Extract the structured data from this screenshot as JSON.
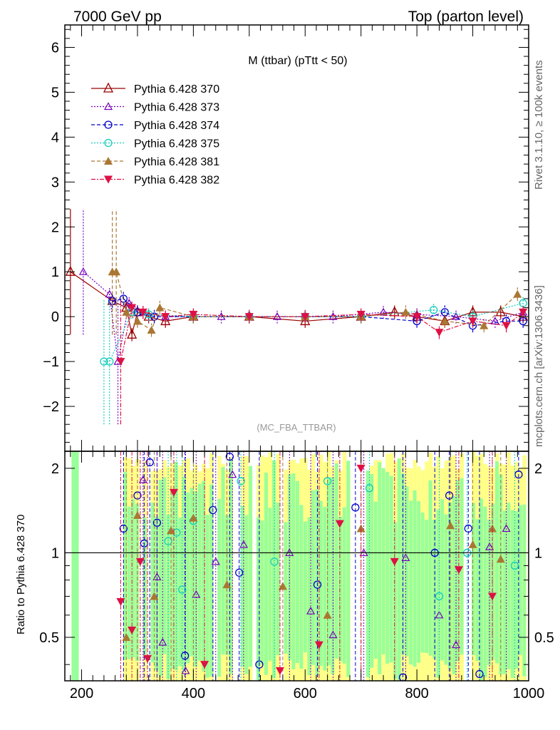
{
  "header": {
    "left": "7000 GeV pp",
    "right": "Top (parton level)"
  },
  "side": {
    "rivet": "Rivet 3.1.10, ≥ 100k events",
    "mcplots": "mcplots.cern.ch [arXiv:1306.3436]"
  },
  "plot_title": "M (ttbar) (pTtt < 50)",
  "analysis": "(MC_FBA_TTBAR)",
  "ratio_ylabel": "Ratio to Pythia 6.428 370",
  "colors": {
    "370": "#990000",
    "373": "#7700bb",
    "374": "#0000cc",
    "375": "#11ccbb",
    "381": "#aa7733",
    "382": "#dd1144",
    "band_green": "#99ff99",
    "band_yellow": "#ffff88"
  },
  "chart_data": {
    "type": "scatter",
    "main": {
      "xlim": [
        170,
        1000
      ],
      "ylim": [
        -3,
        6.5
      ],
      "yticks": [
        -2,
        -1,
        0,
        1,
        2,
        3,
        4,
        5,
        6
      ],
      "ytick_labels": [
        "−2",
        "−1",
        "0",
        "1",
        "2",
        "3",
        "4",
        "5",
        "6"
      ]
    },
    "ratio": {
      "ylim": [
        0.35,
        2.3
      ],
      "yticks": [
        0.5,
        1,
        2
      ],
      "ytick_labels": [
        "0.5",
        "1",
        "2"
      ]
    },
    "xticks": [
      200,
      400,
      600,
      800,
      1000
    ],
    "xtick_labels": [
      "200",
      "400",
      "600",
      "800",
      "1000"
    ],
    "legend": [
      {
        "name": "Pythia 6.428 370",
        "marker": "triangle-open",
        "dash": "solid"
      },
      {
        "name": "Pythia 6.428 373",
        "marker": "triangle-open-small",
        "dash": "dotted"
      },
      {
        "name": "Pythia 6.428 374",
        "marker": "circle-open",
        "dash": "dashed"
      },
      {
        "name": "Pythia 6.428 375",
        "marker": "circle-open",
        "dash": "dotted"
      },
      {
        "name": "Pythia 6.428 381",
        "marker": "triangle-filled",
        "dash": "dashed"
      },
      {
        "name": "Pythia 6.428 382",
        "marker": "triangle-down-filled",
        "dash": "dashdot"
      }
    ],
    "series": [
      {
        "name": "Pythia 6.428 370",
        "points": [
          [
            180,
            1.0
          ],
          [
            255,
            0.35
          ],
          [
            280,
            0.2
          ],
          [
            290,
            -0.4
          ],
          [
            300,
            0.1
          ],
          [
            320,
            0.0
          ],
          [
            350,
            -0.1
          ],
          [
            400,
            0.0
          ],
          [
            500,
            0.0
          ],
          [
            600,
            -0.1
          ],
          [
            700,
            0.0
          ],
          [
            760,
            0.1
          ],
          [
            800,
            0.0
          ],
          [
            850,
            -0.1
          ],
          [
            900,
            0.1
          ],
          [
            950,
            0.1
          ],
          [
            990,
            0.0
          ]
        ]
      },
      {
        "name": "Pythia 6.428 373",
        "points": [
          [
            203,
            1.0
          ],
          [
            250,
            0.5
          ],
          [
            265,
            -1.0
          ],
          [
            285,
            0.3
          ],
          [
            310,
            0.1
          ],
          [
            350,
            0.0
          ],
          [
            450,
            0.0
          ],
          [
            550,
            0.0
          ],
          [
            650,
            0.0
          ],
          [
            740,
            0.1
          ],
          [
            800,
            0.05
          ],
          [
            870,
            0.0
          ],
          [
            940,
            -0.1
          ],
          [
            990,
            0.1
          ]
        ]
      },
      {
        "name": "Pythia 6.428 374",
        "points": [
          [
            255,
            0.35
          ],
          [
            275,
            0.4
          ],
          [
            300,
            0.1
          ],
          [
            330,
            0.0
          ],
          [
            400,
            0.0
          ],
          [
            500,
            0.0
          ],
          [
            600,
            0.0
          ],
          [
            700,
            0.0
          ],
          [
            800,
            -0.1
          ],
          [
            850,
            0.1
          ],
          [
            900,
            -0.2
          ],
          [
            960,
            -0.1
          ],
          [
            990,
            -0.1
          ]
        ]
      },
      {
        "name": "Pythia 6.428 375",
        "points": [
          [
            240,
            -1.0
          ],
          [
            250,
            -1.0
          ],
          [
            290,
            0.1
          ],
          [
            320,
            0.05
          ],
          [
            400,
            0.0
          ],
          [
            500,
            0.0
          ],
          [
            600,
            0.0
          ],
          [
            700,
            0.0
          ],
          [
            830,
            0.15
          ],
          [
            900,
            0.0
          ],
          [
            990,
            0.3
          ]
        ]
      },
      {
        "name": "Pythia 6.428 381",
        "points": [
          [
            255,
            1.0
          ],
          [
            262,
            1.0
          ],
          [
            280,
            0.1
          ],
          [
            300,
            -0.1
          ],
          [
            325,
            -0.3
          ],
          [
            340,
            0.2
          ],
          [
            400,
            0.0
          ],
          [
            500,
            0.0
          ],
          [
            600,
            0.0
          ],
          [
            700,
            0.0
          ],
          [
            780,
            0.1
          ],
          [
            850,
            -0.1
          ],
          [
            920,
            -0.2
          ],
          [
            980,
            0.5
          ]
        ]
      },
      {
        "name": "Pythia 6.428 382",
        "points": [
          [
            270,
            -1.0
          ],
          [
            290,
            0.2
          ],
          [
            310,
            0.1
          ],
          [
            350,
            0.0
          ],
          [
            400,
            0.05
          ],
          [
            500,
            0.0
          ],
          [
            600,
            0.0
          ],
          [
            700,
            0.05
          ],
          [
            800,
            0.0
          ],
          [
            840,
            -0.35
          ],
          [
            900,
            -0.1
          ],
          [
            960,
            -0.2
          ],
          [
            990,
            0.1
          ]
        ]
      }
    ],
    "ratio_points": [
      {
        "series": "Pythia 6.428 374",
        "points": [
          [
            275,
            1.22
          ],
          [
            300,
            1.6
          ],
          [
            312,
            1.08
          ],
          [
            322,
            2.1
          ],
          [
            335,
            1.28
          ],
          [
            385,
            0.43
          ],
          [
            435,
            1.42
          ],
          [
            465,
            2.2
          ],
          [
            482,
            0.85
          ],
          [
            518,
            0.4
          ],
          [
            622,
            0.77
          ],
          [
            690,
            1.45
          ],
          [
            775,
            0.36
          ],
          [
            832,
            1.0
          ],
          [
            858,
            1.6
          ],
          [
            892,
            1.22
          ],
          [
            912,
            0.37
          ],
          [
            982,
            1.9
          ]
        ]
      },
      {
        "series": "Pythia 6.428 373",
        "points": [
          [
            310,
            1.82
          ],
          [
            335,
            0.82
          ],
          [
            345,
            0.48
          ],
          [
            386,
            0.38
          ],
          [
            405,
            0.71
          ],
          [
            440,
            0.93
          ],
          [
            470,
            1.9
          ],
          [
            490,
            1.07
          ],
          [
            572,
            1.0
          ],
          [
            610,
            0.62
          ],
          [
            650,
            0.51
          ],
          [
            705,
            1.0
          ],
          [
            780,
            0.96
          ],
          [
            840,
            0.6
          ],
          [
            870,
            0.47
          ],
          [
            930,
            1.05
          ],
          [
            960,
            1.22
          ]
        ]
      },
      {
        "series": "Pythia 6.428 375",
        "points": [
          [
            355,
            1.1
          ],
          [
            370,
            1.18
          ],
          [
            380,
            0.74
          ],
          [
            400,
            1.3
          ],
          [
            485,
            1.8
          ],
          [
            545,
            0.93
          ],
          [
            640,
            1.8
          ],
          [
            715,
            1.7
          ],
          [
            840,
            0.7
          ],
          [
            890,
            1.0
          ],
          [
            975,
            0.9
          ]
        ]
      },
      {
        "series": "Pythia 6.428 381",
        "points": [
          [
            280,
            0.5
          ],
          [
            300,
            1.36
          ],
          [
            330,
            0.7
          ],
          [
            360,
            1.2
          ],
          [
            400,
            1.33
          ],
          [
            460,
            0.77
          ],
          [
            560,
            0.76
          ],
          [
            640,
            0.6
          ],
          [
            700,
            1.22
          ],
          [
            860,
            1.25
          ],
          [
            900,
            1.07
          ],
          [
            935,
            1.22
          ],
          [
            950,
            0.95
          ]
        ]
      },
      {
        "series": "Pythia 6.428 382",
        "points": [
          [
            270,
            0.67
          ],
          [
            290,
            0.53
          ],
          [
            305,
            0.93
          ],
          [
            318,
            0.42
          ],
          [
            365,
            1.64
          ],
          [
            420,
            0.4
          ],
          [
            555,
            0.38
          ],
          [
            625,
            0.47
          ],
          [
            662,
            1.27
          ],
          [
            700,
            2.0
          ],
          [
            760,
            0.93
          ],
          [
            875,
            0.87
          ],
          [
            935,
            0.7
          ]
        ]
      }
    ]
  }
}
